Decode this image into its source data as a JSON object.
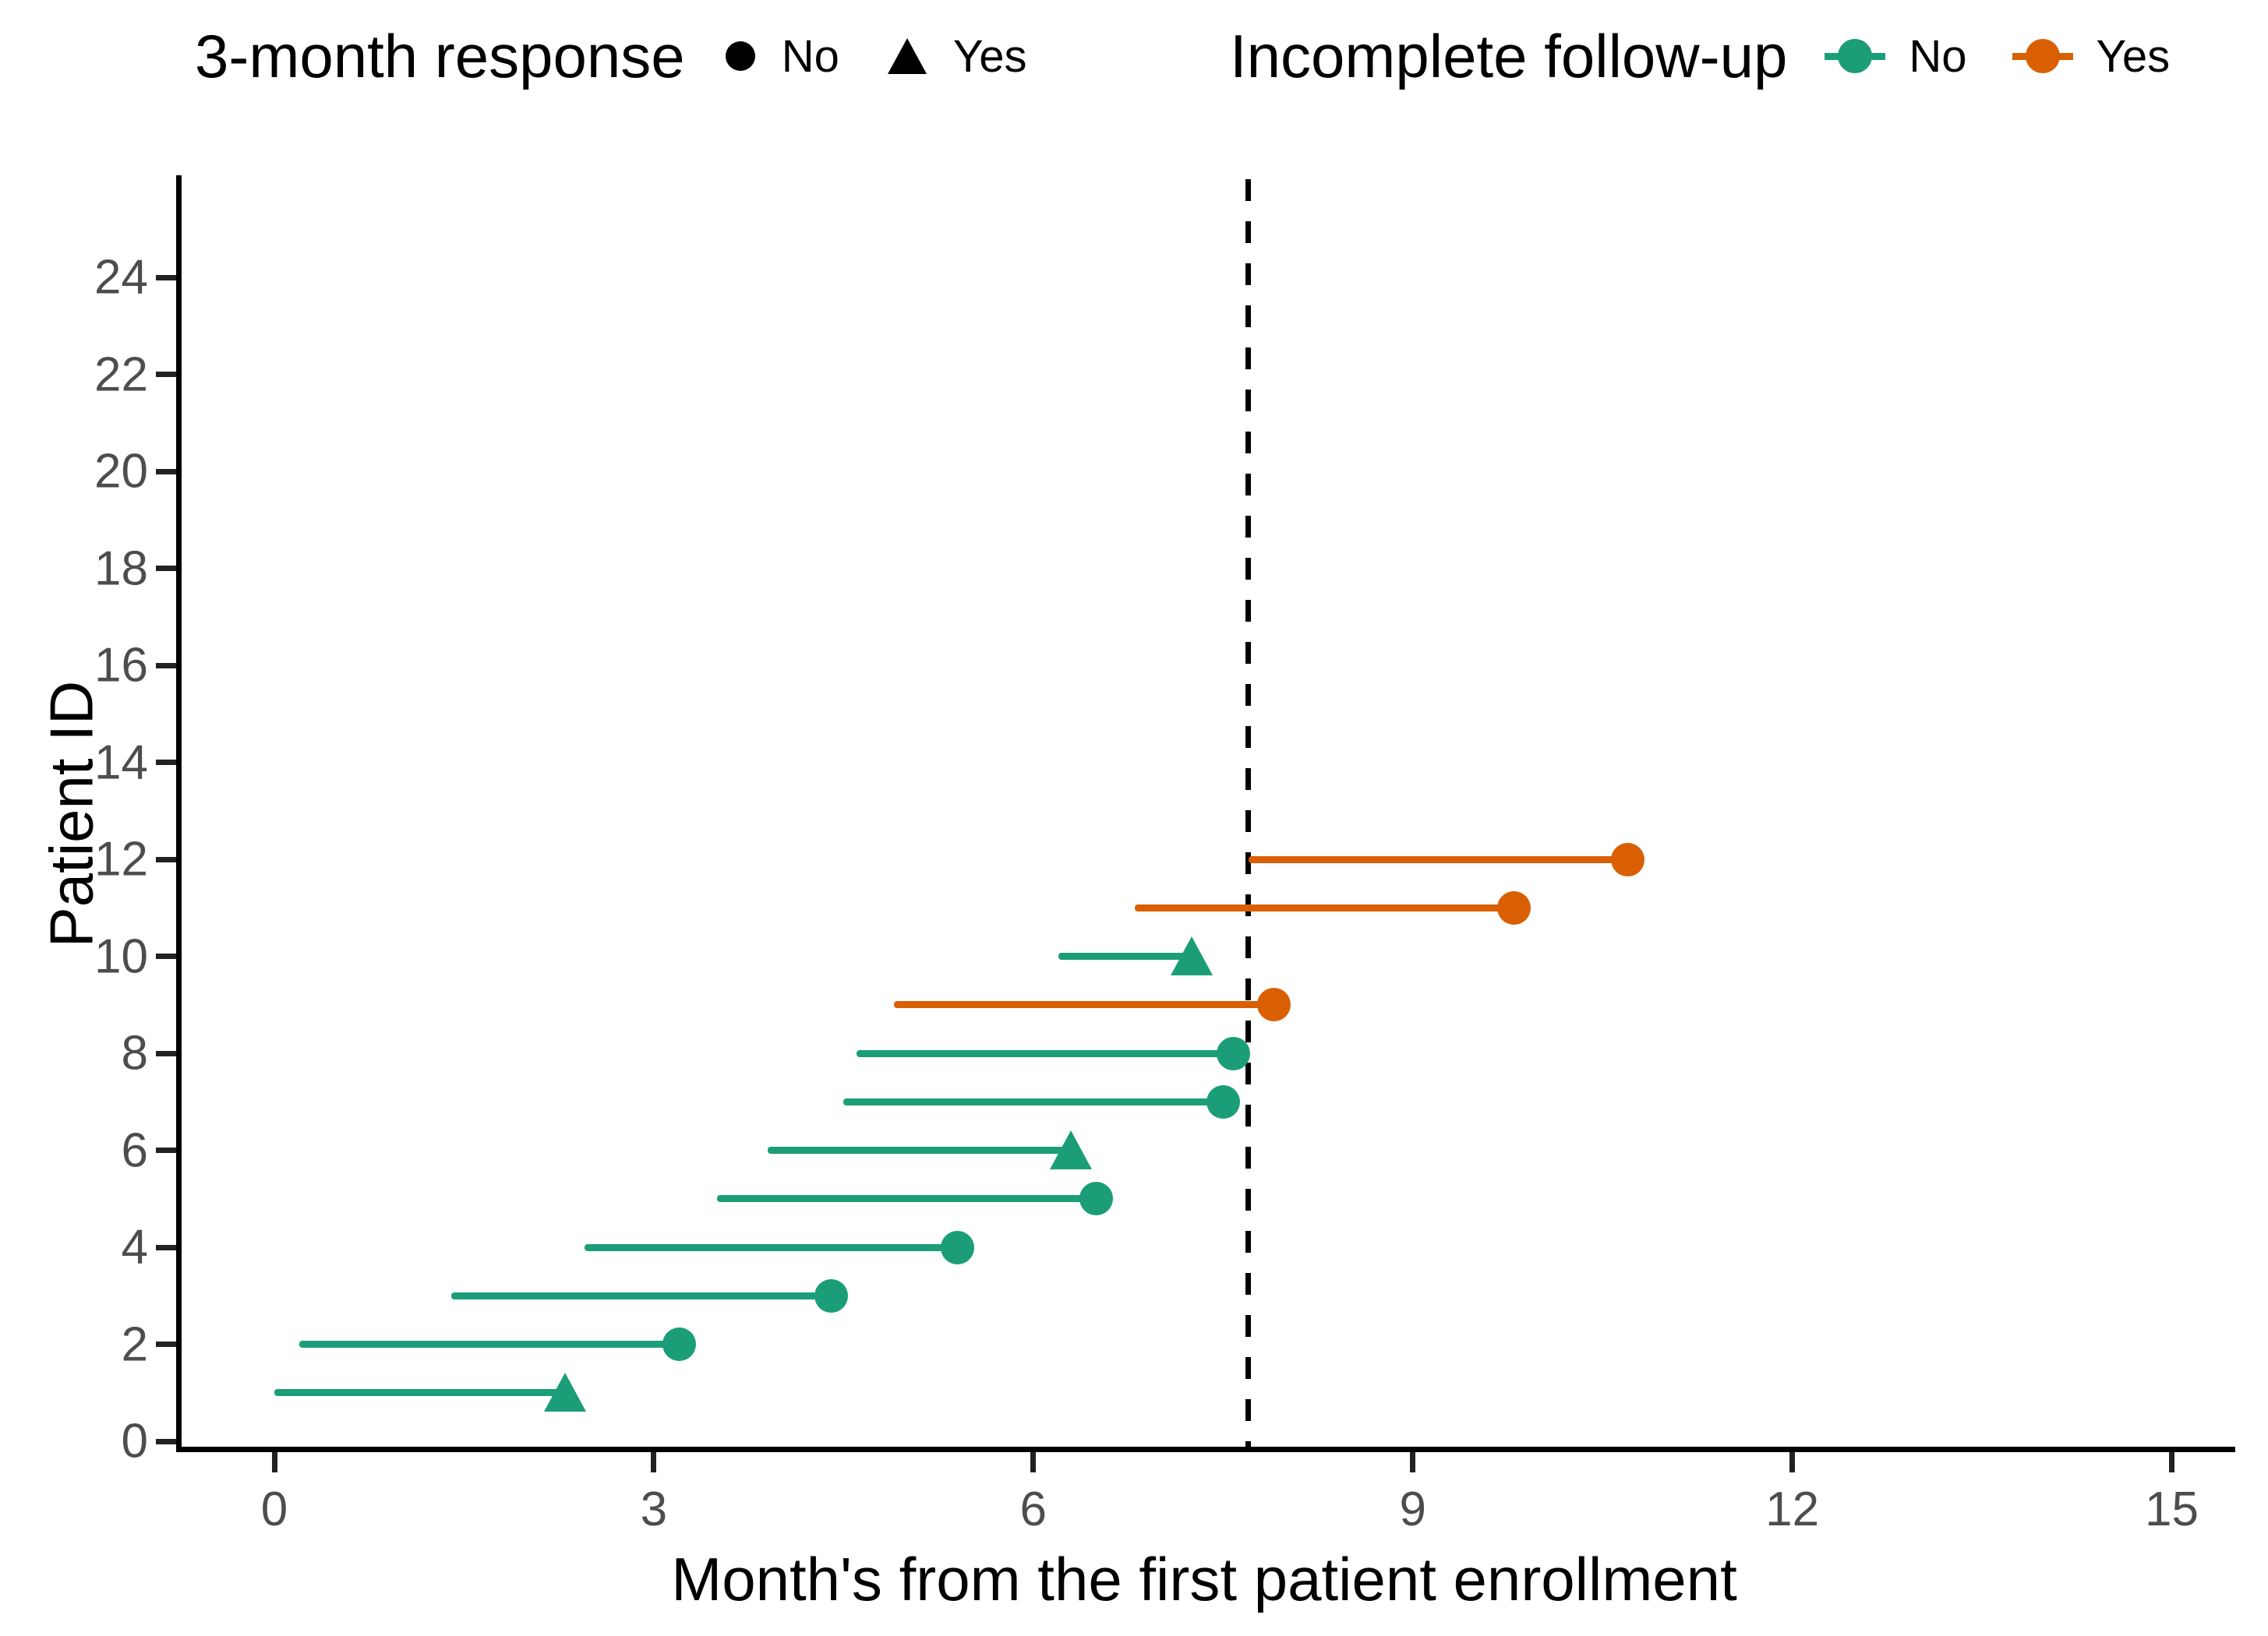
{
  "chart_data": {
    "type": "scatter",
    "subtype": "swimmer-lollipop",
    "title": "",
    "xlabel": "Month's from the first patient enrollment",
    "ylabel": "Patient ID",
    "x_ticks": [
      0,
      3,
      6,
      9,
      12,
      15
    ],
    "y_ticks": [
      0,
      2,
      4,
      6,
      8,
      10,
      12,
      14,
      16,
      18,
      20,
      22,
      24
    ],
    "xlim": [
      -0.75,
      15.65
    ],
    "ylim": [
      0,
      26.2
    ],
    "grid": false,
    "dashed_vline_x": 7.7,
    "patients": [
      {
        "id": 1,
        "start": 0.0,
        "end": 2.3,
        "response_3mo": "Yes",
        "incomplete_followup": "No"
      },
      {
        "id": 2,
        "start": 0.2,
        "end": 3.2,
        "response_3mo": "No",
        "incomplete_followup": "No"
      },
      {
        "id": 3,
        "start": 1.4,
        "end": 4.4,
        "response_3mo": "No",
        "incomplete_followup": "No"
      },
      {
        "id": 4,
        "start": 2.45,
        "end": 5.4,
        "response_3mo": "No",
        "incomplete_followup": "No"
      },
      {
        "id": 5,
        "start": 3.5,
        "end": 6.5,
        "response_3mo": "No",
        "incomplete_followup": "No"
      },
      {
        "id": 6,
        "start": 3.9,
        "end": 6.3,
        "response_3mo": "Yes",
        "incomplete_followup": "No"
      },
      {
        "id": 7,
        "start": 4.5,
        "end": 7.5,
        "response_3mo": "No",
        "incomplete_followup": "No"
      },
      {
        "id": 8,
        "start": 4.6,
        "end": 7.58,
        "response_3mo": "No",
        "incomplete_followup": "No"
      },
      {
        "id": 9,
        "start": 4.9,
        "end": 7.9,
        "response_3mo": "No",
        "incomplete_followup": "Yes"
      },
      {
        "id": 10,
        "start": 6.2,
        "end": 7.25,
        "response_3mo": "Yes",
        "incomplete_followup": "No"
      },
      {
        "id": 11,
        "start": 6.8,
        "end": 9.8,
        "response_3mo": "No",
        "incomplete_followup": "Yes"
      },
      {
        "id": 12,
        "start": 7.7,
        "end": 10.7,
        "response_3mo": "No",
        "incomplete_followup": "Yes"
      }
    ],
    "colors": {
      "followup_no": "#1B9E77",
      "followup_yes": "#D95F02",
      "axis_text": "#4D4D4D",
      "axis_line": "#000000",
      "dashed_line": "#000000",
      "legend_key": "#000000"
    },
    "legend_position": "top"
  },
  "legend": {
    "response": {
      "title": "3-month response",
      "items": [
        {
          "label": "No",
          "marker": "circle"
        },
        {
          "label": "Yes",
          "marker": "triangle"
        }
      ]
    },
    "followup": {
      "title": "Incomplete follow-up",
      "items": [
        {
          "label": "No",
          "color": "#1B9E77"
        },
        {
          "label": "Yes",
          "color": "#D95F02"
        }
      ]
    }
  }
}
